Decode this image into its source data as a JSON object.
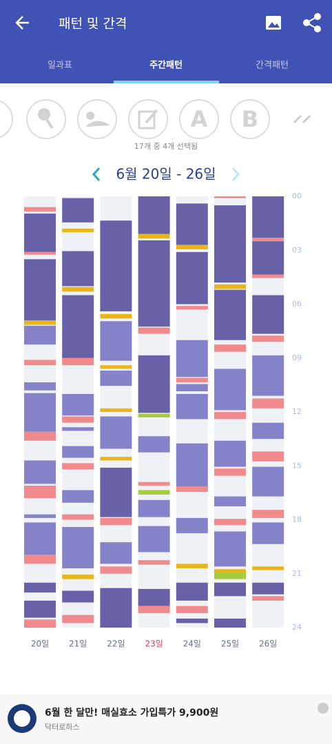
{
  "header": {
    "title": "패턴 및 간격"
  },
  "tabs": [
    "일과표",
    "주간패턴",
    "간격패턴"
  ],
  "selected_tab": 1,
  "icon_letters": [
    "A",
    "B"
  ],
  "selection_caption": "17개 중 4개 선택됨",
  "week_label": "6월 20일 - 26일",
  "chart": {
    "type": "timeline",
    "ylim": [
      0,
      24
    ],
    "yticks": [
      {
        "value": 0,
        "label": "00"
      },
      {
        "value": 3,
        "label": "03"
      },
      {
        "value": 6,
        "label": "06"
      },
      {
        "value": 9,
        "label": "09"
      },
      12,
      15,
      18,
      21,
      24
    ],
    "days": [
      {
        "label": "20일",
        "segments": [
          {
            "start": 0.6,
            "end": 0.85,
            "color": "#f08a8c"
          },
          {
            "start": 0.96,
            "end": 3.1,
            "color": "#6762a8"
          },
          {
            "start": 3.1,
            "end": 3.25,
            "color": "#f08a8c"
          },
          {
            "start": 3.5,
            "end": 6.9,
            "color": "#6762a8"
          },
          {
            "start": 6.9,
            "end": 7.15,
            "color": "#e8b51c"
          },
          {
            "start": 7.2,
            "end": 8.25,
            "color": "#8482c8"
          },
          {
            "start": 9.1,
            "end": 9.4,
            "color": "#f08a8c"
          },
          {
            "start": 10.35,
            "end": 10.8,
            "color": "#8482c8"
          },
          {
            "start": 10.95,
            "end": 13.1,
            "color": "#8482c8"
          },
          {
            "start": 13.1,
            "end": 13.6,
            "color": "#f08a8c"
          },
          {
            "start": 14.7,
            "end": 16.0,
            "color": "#8482c8"
          },
          {
            "start": 16.1,
            "end": 16.8,
            "color": "#f08a8c"
          },
          {
            "start": 17.7,
            "end": 17.9,
            "color": "#8482c8"
          },
          {
            "start": 18.15,
            "end": 19.95,
            "color": "#8482c8"
          },
          {
            "start": 19.95,
            "end": 20.45,
            "color": "#f08a8c"
          },
          {
            "start": 21.5,
            "end": 22.05,
            "color": "#6762a8"
          },
          {
            "start": 22.5,
            "end": 23.45,
            "color": "#6762a8"
          },
          {
            "start": 23.55,
            "end": 24,
            "color": "#f08a8c"
          }
        ]
      },
      {
        "label": "21일",
        "segments": [
          {
            "start": 0.1,
            "end": 1.45,
            "color": "#6762a8"
          },
          {
            "start": 1.8,
            "end": 2.0,
            "color": "#e8b51c"
          },
          {
            "start": 3.05,
            "end": 5.0,
            "color": "#6762a8"
          },
          {
            "start": 5.05,
            "end": 5.3,
            "color": "#e8b51c"
          },
          {
            "start": 5.5,
            "end": 9.0,
            "color": "#6762a8"
          },
          {
            "start": 9.0,
            "end": 9.4,
            "color": "#f08a8c"
          },
          {
            "start": 11.0,
            "end": 12.2,
            "color": "#8482c8"
          },
          {
            "start": 12.25,
            "end": 12.6,
            "color": "#f08a8c"
          },
          {
            "start": 12.85,
            "end": 13.05,
            "color": "#8482c8"
          },
          {
            "start": 13.9,
            "end": 14.55,
            "color": "#8482c8"
          },
          {
            "start": 14.85,
            "end": 15.2,
            "color": "#f08a8c"
          },
          {
            "start": 16.35,
            "end": 17.05,
            "color": "#8482c8"
          },
          {
            "start": 17.7,
            "end": 18.0,
            "color": "#f08a8c"
          },
          {
            "start": 18.4,
            "end": 20.7,
            "color": "#8482c8"
          },
          {
            "start": 21.05,
            "end": 21.3,
            "color": "#e8b51c"
          },
          {
            "start": 21.95,
            "end": 22.6,
            "color": "#6762a8"
          },
          {
            "start": 23.3,
            "end": 23.75,
            "color": "#f08a8c"
          }
        ]
      },
      {
        "label": "22일",
        "segments": [
          {
            "start": 1.35,
            "end": 6.4,
            "color": "#6762a8"
          },
          {
            "start": 6.55,
            "end": 6.8,
            "color": "#e8b51c"
          },
          {
            "start": 6.95,
            "end": 9.15,
            "color": "#8482c8"
          },
          {
            "start": 9.4,
            "end": 9.6,
            "color": "#e8b51c"
          },
          {
            "start": 9.7,
            "end": 10.55,
            "color": "#8482c8"
          },
          {
            "start": 11.8,
            "end": 12.0,
            "color": "#e8b51c"
          },
          {
            "start": 12.25,
            "end": 14.05,
            "color": "#8482c8"
          },
          {
            "start": 14.5,
            "end": 14.7,
            "color": "#e8b51c"
          },
          {
            "start": 15.1,
            "end": 17.85,
            "color": "#6762a8"
          },
          {
            "start": 17.9,
            "end": 18.3,
            "color": "#f08a8c"
          },
          {
            "start": 19.25,
            "end": 20.45,
            "color": "#8482c8"
          },
          {
            "start": 20.6,
            "end": 21.0,
            "color": "#f08a8c"
          },
          {
            "start": 21.8,
            "end": 24,
            "color": "#6762a8"
          }
        ]
      },
      {
        "label": "23일",
        "color": "#e23a4e",
        "segments": [
          {
            "start": 0,
            "end": 2.1,
            "color": "#6762a8"
          },
          {
            "start": 2.1,
            "end": 2.35,
            "color": "#e8b51c"
          },
          {
            "start": 2.45,
            "end": 7.25,
            "color": "#6762a8"
          },
          {
            "start": 7.3,
            "end": 7.65,
            "color": "#f08a8c"
          },
          {
            "start": 8.85,
            "end": 12.05,
            "color": "#6762a8"
          },
          {
            "start": 12.1,
            "end": 12.3,
            "color": "#a5cc3a"
          },
          {
            "start": 13.35,
            "end": 14.25,
            "color": "#8482c8"
          },
          {
            "start": 15.9,
            "end": 16.1,
            "color": "#f08a8c"
          },
          {
            "start": 16.35,
            "end": 16.6,
            "color": "#a5cc3a"
          },
          {
            "start": 16.9,
            "end": 17.85,
            "color": "#8482c8"
          },
          {
            "start": 18.35,
            "end": 19.8,
            "color": "#8482c8"
          },
          {
            "start": 20.25,
            "end": 20.5,
            "color": "#f08a8c"
          },
          {
            "start": 21.85,
            "end": 22.8,
            "color": "#6762a8"
          },
          {
            "start": 22.8,
            "end": 23.2,
            "color": "#f08a8c"
          }
        ]
      },
      {
        "label": "24일",
        "segments": [
          {
            "start": 0.4,
            "end": 2.7,
            "color": "#6762a8"
          },
          {
            "start": 2.7,
            "end": 2.95,
            "color": "#e8b51c"
          },
          {
            "start": 3.1,
            "end": 6.0,
            "color": "#6762a8"
          },
          {
            "start": 6.1,
            "end": 6.3,
            "color": "#f08a8c"
          },
          {
            "start": 8.0,
            "end": 10.05,
            "color": "#8482c8"
          },
          {
            "start": 10.1,
            "end": 10.35,
            "color": "#f08a8c"
          },
          {
            "start": 10.45,
            "end": 10.85,
            "color": "#8482c8"
          },
          {
            "start": 11.0,
            "end": 12.4,
            "color": "#8482c8"
          },
          {
            "start": 13.75,
            "end": 16.15,
            "color": "#8482c8"
          },
          {
            "start": 16.15,
            "end": 16.45,
            "color": "#f08a8c"
          },
          {
            "start": 17.9,
            "end": 18.75,
            "color": "#8482c8"
          },
          {
            "start": 20.45,
            "end": 20.7,
            "color": "#e8b51c"
          },
          {
            "start": 21.5,
            "end": 22.5,
            "color": "#6762a8"
          },
          {
            "start": 22.8,
            "end": 23.2,
            "color": "#f08a8c"
          },
          {
            "start": 23.5,
            "end": 23.75,
            "color": "#6762a8"
          }
        ]
      },
      {
        "label": "25일",
        "segments": [
          {
            "start": 0,
            "end": 0.1,
            "color": "#f08a8c"
          },
          {
            "start": 0.5,
            "end": 4.8,
            "color": "#6762a8"
          },
          {
            "start": 4.9,
            "end": 5.15,
            "color": "#e8b51c"
          },
          {
            "start": 5.2,
            "end": 8.0,
            "color": "#6762a8"
          },
          {
            "start": 8.25,
            "end": 8.65,
            "color": "#f08a8c"
          },
          {
            "start": 9.6,
            "end": 11.9,
            "color": "#8482c8"
          },
          {
            "start": 12.0,
            "end": 12.4,
            "color": "#f08a8c"
          },
          {
            "start": 13.6,
            "end": 15.05,
            "color": "#8482c8"
          },
          {
            "start": 15.15,
            "end": 15.55,
            "color": "#f08a8c"
          },
          {
            "start": 16.7,
            "end": 17.25,
            "color": "#8482c8"
          },
          {
            "start": 17.95,
            "end": 18.3,
            "color": "#f08a8c"
          },
          {
            "start": 18.65,
            "end": 20.6,
            "color": "#8482c8"
          },
          {
            "start": 20.75,
            "end": 20.95,
            "color": "#e8b51c"
          },
          {
            "start": 20.95,
            "end": 21.3,
            "color": "#a5cc3a"
          },
          {
            "start": 21.5,
            "end": 22.25,
            "color": "#6762a8"
          },
          {
            "start": 23.5,
            "end": 24,
            "color": "#6762a8"
          }
        ]
      },
      {
        "label": "26일",
        "segments": [
          {
            "start": 0,
            "end": 2.3,
            "color": "#6762a8"
          },
          {
            "start": 2.3,
            "end": 2.5,
            "color": "#f08a8c"
          },
          {
            "start": 2.5,
            "end": 4.35,
            "color": "#6762a8"
          },
          {
            "start": 4.35,
            "end": 4.55,
            "color": "#f08a8c"
          },
          {
            "start": 5.5,
            "end": 7.65,
            "color": "#6762a8"
          },
          {
            "start": 7.75,
            "end": 8.1,
            "color": "#f08a8c"
          },
          {
            "start": 8.85,
            "end": 11.1,
            "color": "#8482c8"
          },
          {
            "start": 11.25,
            "end": 11.8,
            "color": "#f08a8c"
          },
          {
            "start": 12.6,
            "end": 13.5,
            "color": "#8482c8"
          },
          {
            "start": 14.2,
            "end": 14.75,
            "color": "#f08a8c"
          },
          {
            "start": 15.05,
            "end": 16.7,
            "color": "#8482c8"
          },
          {
            "start": 17.45,
            "end": 17.9,
            "color": "#f08a8c"
          },
          {
            "start": 18.15,
            "end": 19.35,
            "color": "#8482c8"
          },
          {
            "start": 20.6,
            "end": 20.8,
            "color": "#e8b51c"
          },
          {
            "start": 21.5,
            "end": 22.15,
            "color": "#6762a8"
          },
          {
            "start": 22.25,
            "end": 22.5,
            "color": "#f08a8c"
          }
        ]
      }
    ]
  },
  "ad": {
    "title": "6월 한 달만! 매실효소 가입특가 9,900원",
    "sponsor": "닥터로하스"
  }
}
